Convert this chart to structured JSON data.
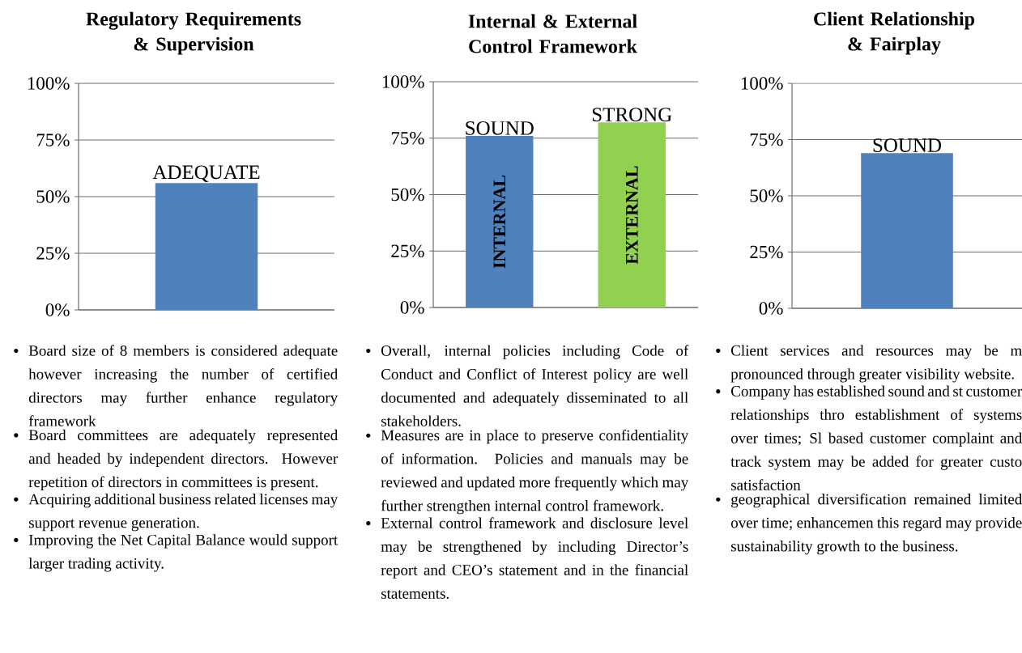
{
  "chart_data": [
    {
      "type": "bar",
      "title": "Regulatory Requirements & Supervision",
      "categories": [
        null
      ],
      "values": [
        56
      ],
      "colors": [
        "#4f81bd"
      ],
      "value_labels": [
        "ADEQUATE"
      ],
      "ylim": [
        0,
        100
      ],
      "yticks": [
        {
          "value": 0,
          "label": "0%"
        },
        {
          "value": 25,
          "label": "25%"
        },
        {
          "value": 50,
          "label": "50%"
        },
        {
          "value": 75,
          "label": "75%"
        },
        {
          "value": 100,
          "label": "100%"
        }
      ],
      "grid": "y",
      "annotations": [
        "Board size of 8 members is considered adequate however increasing the number of certified directors may further enhance regulatory framework",
        "Board committees are adequately represented and headed by independent directors. However repetition of directors in committees is present.",
        "Acquiring additional business related licenses may support revenue generation.",
        "Improving the Net Capital Balance would support larger trading activity."
      ]
    },
    {
      "type": "bar",
      "title": "Internal & External Control Framework",
      "categories": [
        "INTERNAL",
        "EXTERNAL"
      ],
      "values": [
        76,
        82
      ],
      "colors": [
        "#4f81bd",
        "#92d050"
      ],
      "value_labels": [
        "SOUND",
        "STRONG"
      ],
      "ylim": [
        0,
        100
      ],
      "yticks": [
        {
          "value": 0,
          "label": "0%"
        },
        {
          "value": 25,
          "label": "25%"
        },
        {
          "value": 50,
          "label": "50%"
        },
        {
          "value": 75,
          "label": "75%"
        },
        {
          "value": 100,
          "label": "100%"
        }
      ],
      "grid": "y",
      "annotations": [
        "Overall, internal policies including Code of Conduct and Conflict of Interest policy are well documented and adequately disseminated to all stakeholders.",
        "Measures are in place to preserve confidentiality of information. Policies and manuals may be reviewed and updated more frequently which may further strengthen internal control framework.",
        "External control framework and disclosure level may be strengthened by including Director’s report and CEO’s statement and in the financial statements."
      ]
    },
    {
      "type": "bar",
      "title": "Client Relationship & Fairplay",
      "categories": [
        null
      ],
      "values": [
        69
      ],
      "colors": [
        "#4f81bd"
      ],
      "value_labels": [
        "SOUND"
      ],
      "ylim": [
        0,
        100
      ],
      "yticks": [
        {
          "value": 0,
          "label": "0%"
        },
        {
          "value": 25,
          "label": "25%"
        },
        {
          "value": 50,
          "label": "50%"
        },
        {
          "value": 75,
          "label": "75%"
        },
        {
          "value": 100,
          "label": "100%"
        }
      ],
      "grid": "y",
      "annotations": [
        "Client services and resources may be m pronounced through greater visibility website.",
        "Company has established sound and st customer relationships thro establishment of systems over times; Sl based customer complaint and track system may be added for greater custo satisfaction",
        "geographical diversification remained limited over time; enhancemen this regard may provide sustainability growth to the business."
      ]
    }
  ]
}
